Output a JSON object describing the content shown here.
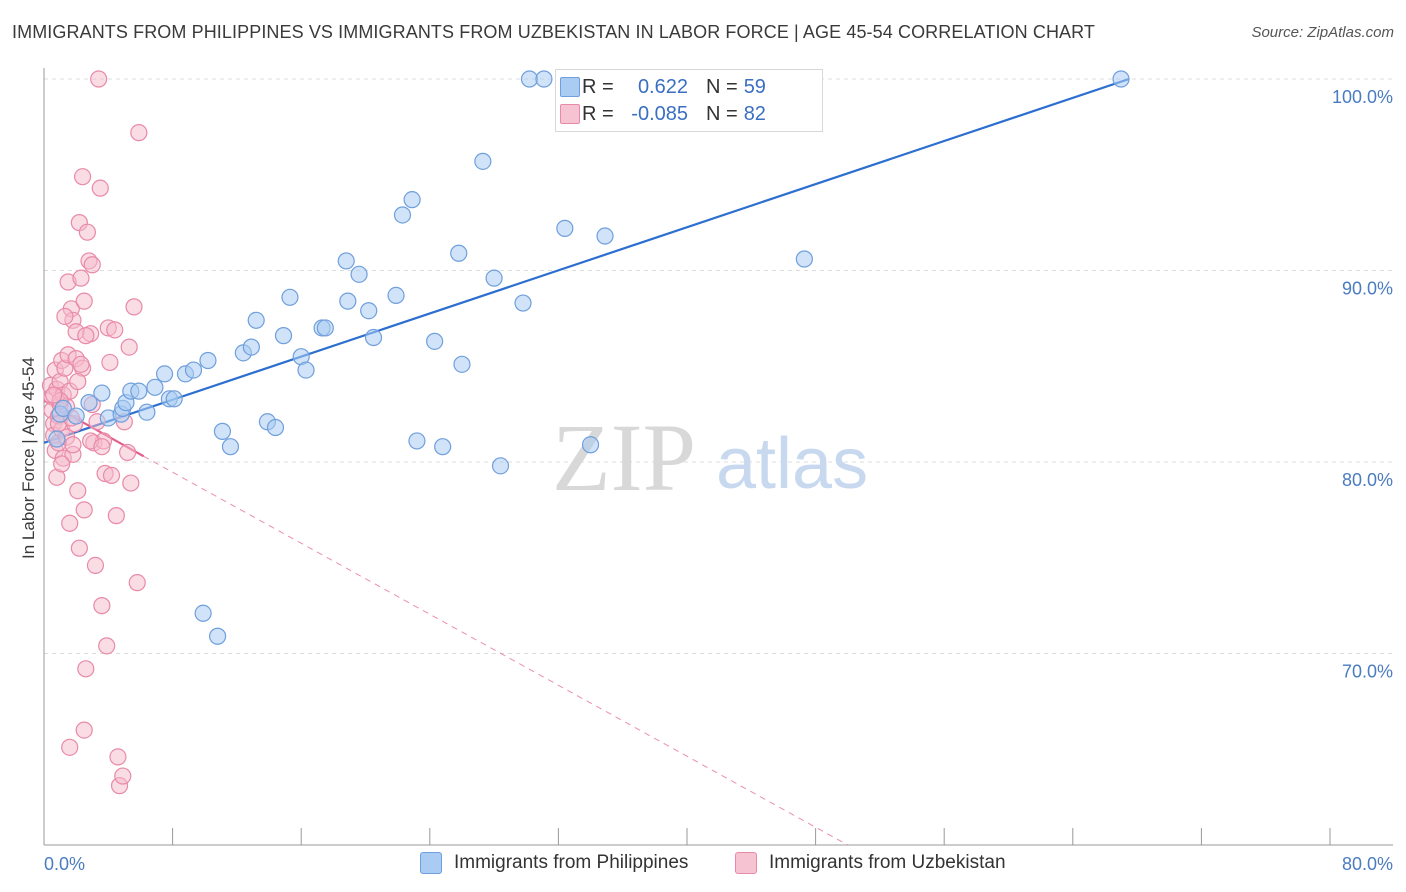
{
  "header": {
    "title": "IMMIGRANTS FROM PHILIPPINES VS IMMIGRANTS FROM UZBEKISTAN IN LABOR FORCE | AGE 45-54 CORRELATION CHART",
    "source": "Source: ZipAtlas.com"
  },
  "watermark": {
    "zip": "ZIP",
    "atlas": "atlas"
  },
  "legend": {
    "series1": {
      "r_label": "R =",
      "r_value": "0.622",
      "n_label": "N =",
      "n_value": "59"
    },
    "series2": {
      "r_label": "R =",
      "r_value": "-0.085",
      "n_label": "N =",
      "n_value": "82"
    }
  },
  "colors": {
    "blue_fill": "#aaccf2",
    "blue_stroke": "#6f9fdc",
    "blue_line": "#2c6fd0",
    "pink_fill": "#f6b9cc",
    "pink_stroke": "#e88aa8",
    "pink_line": "#e2608d",
    "tick_text": "#4a7cc0"
  },
  "chart_data": {
    "type": "scatter",
    "title": "IMMIGRANTS FROM PHILIPPINES VS IMMIGRANTS FROM UZBEKISTAN IN LABOR FORCE | AGE 45-54 CORRELATION CHART",
    "xlabel": "",
    "ylabel": "In Labor Force | Age 45-54",
    "xlim": [
      0,
      80
    ],
    "ylim": [
      60,
      100
    ],
    "x_tick_labels": {
      "min": "0.0%",
      "max": "80.0%"
    },
    "y_ticks": [
      {
        "value": 70,
        "label": "70.0%"
      },
      {
        "value": 80,
        "label": "80.0%"
      },
      {
        "value": 90,
        "label": "90.0%"
      },
      {
        "value": 100,
        "label": "100.0%"
      }
    ],
    "series": [
      {
        "name": "Immigrants from Philippines",
        "color": "#6f9fdc",
        "trend": {
          "x0": 0,
          "y0": 81.0,
          "x1": 67.5,
          "y1": 100,
          "dashed_to": null
        },
        "points": [
          [
            0.8,
            81.2
          ],
          [
            1.0,
            82.5
          ],
          [
            1.2,
            82.8
          ],
          [
            2.0,
            82.4
          ],
          [
            2.8,
            83.1
          ],
          [
            3.6,
            83.6
          ],
          [
            4.0,
            82.3
          ],
          [
            4.8,
            82.5
          ],
          [
            4.9,
            82.8
          ],
          [
            5.1,
            83.1
          ],
          [
            5.4,
            83.7
          ],
          [
            5.9,
            83.7
          ],
          [
            6.4,
            82.6
          ],
          [
            6.9,
            83.9
          ],
          [
            7.5,
            84.6
          ],
          [
            7.8,
            83.3
          ],
          [
            8.1,
            83.3
          ],
          [
            8.8,
            84.6
          ],
          [
            9.3,
            84.8
          ],
          [
            10.2,
            85.3
          ],
          [
            11.1,
            81.6
          ],
          [
            11.6,
            80.8
          ],
          [
            12.4,
            85.7
          ],
          [
            12.9,
            86.0
          ],
          [
            13.2,
            87.4
          ],
          [
            13.9,
            82.1
          ],
          [
            14.4,
            81.8
          ],
          [
            14.9,
            86.6
          ],
          [
            15.3,
            88.6
          ],
          [
            16.0,
            85.5
          ],
          [
            16.3,
            84.8
          ],
          [
            17.3,
            87.0
          ],
          [
            17.5,
            87.0
          ],
          [
            18.8,
            90.5
          ],
          [
            18.9,
            88.4
          ],
          [
            19.6,
            89.8
          ],
          [
            20.2,
            87.9
          ],
          [
            20.5,
            86.5
          ],
          [
            21.9,
            88.7
          ],
          [
            22.3,
            92.9
          ],
          [
            22.9,
            93.7
          ],
          [
            23.2,
            81.1
          ],
          [
            24.3,
            86.3
          ],
          [
            24.8,
            80.8
          ],
          [
            25.8,
            90.9
          ],
          [
            26.0,
            85.1
          ],
          [
            27.3,
            95.7
          ],
          [
            28.0,
            89.6
          ],
          [
            28.4,
            79.8
          ],
          [
            29.8,
            88.3
          ],
          [
            30.2,
            100.0
          ],
          [
            31.1,
            100.0
          ],
          [
            32.4,
            92.2
          ],
          [
            34.0,
            80.9
          ],
          [
            34.9,
            91.8
          ],
          [
            47.3,
            90.6
          ],
          [
            67.0,
            100.0
          ],
          [
            9.9,
            72.1
          ],
          [
            10.8,
            70.9
          ]
        ]
      },
      {
        "name": "Immigrants from Uzbekistan",
        "color": "#e88aa8",
        "trend": {
          "x0": 0,
          "y0": 83.2,
          "x1": 6.2,
          "y1": 80.3,
          "dashed_to": [
            50,
            60
          ]
        },
        "points": [
          [
            0.4,
            84.0
          ],
          [
            0.5,
            83.4
          ],
          [
            0.5,
            82.7
          ],
          [
            0.6,
            82.0
          ],
          [
            0.6,
            81.4
          ],
          [
            0.7,
            84.8
          ],
          [
            0.7,
            80.6
          ],
          [
            0.8,
            79.2
          ],
          [
            0.8,
            83.8
          ],
          [
            0.9,
            82.4
          ],
          [
            0.9,
            81.0
          ],
          [
            1.0,
            84.2
          ],
          [
            1.0,
            83.0
          ],
          [
            1.1,
            85.3
          ],
          [
            1.1,
            81.7
          ],
          [
            1.2,
            80.2
          ],
          [
            1.2,
            83.5
          ],
          [
            1.3,
            84.9
          ],
          [
            1.4,
            82.9
          ],
          [
            1.4,
            81.3
          ],
          [
            1.5,
            89.4
          ],
          [
            1.5,
            85.6
          ],
          [
            1.6,
            83.7
          ],
          [
            1.6,
            76.8
          ],
          [
            1.7,
            88.0
          ],
          [
            1.8,
            87.4
          ],
          [
            1.8,
            80.4
          ],
          [
            1.9,
            82.0
          ],
          [
            2.0,
            85.4
          ],
          [
            2.0,
            86.8
          ],
          [
            2.1,
            78.5
          ],
          [
            2.2,
            75.5
          ],
          [
            2.2,
            92.5
          ],
          [
            2.3,
            89.6
          ],
          [
            2.4,
            84.9
          ],
          [
            2.4,
            94.9
          ],
          [
            2.5,
            77.5
          ],
          [
            2.5,
            88.4
          ],
          [
            2.6,
            69.2
          ],
          [
            2.7,
            92.0
          ],
          [
            2.8,
            90.5
          ],
          [
            2.9,
            86.7
          ],
          [
            3.0,
            90.3
          ],
          [
            3.1,
            81.0
          ],
          [
            3.2,
            74.6
          ],
          [
            3.3,
            82.1
          ],
          [
            3.4,
            100.0
          ],
          [
            3.5,
            94.3
          ],
          [
            3.6,
            72.5
          ],
          [
            3.7,
            81.1
          ],
          [
            3.8,
            79.4
          ],
          [
            3.9,
            70.4
          ],
          [
            4.0,
            87.0
          ],
          [
            4.1,
            85.2
          ],
          [
            4.2,
            79.3
          ],
          [
            4.4,
            86.9
          ],
          [
            4.5,
            77.2
          ],
          [
            4.6,
            64.6
          ],
          [
            4.7,
            63.1
          ],
          [
            4.9,
            63.6
          ],
          [
            5.0,
            82.1
          ],
          [
            5.2,
            80.5
          ],
          [
            5.3,
            86.0
          ],
          [
            5.4,
            78.9
          ],
          [
            5.6,
            88.1
          ],
          [
            5.8,
            73.7
          ],
          [
            5.9,
            97.2
          ],
          [
            1.6,
            65.1
          ],
          [
            2.5,
            66.0
          ],
          [
            1.0,
            83.2
          ],
          [
            2.3,
            85.1
          ],
          [
            0.9,
            82.0
          ],
          [
            1.8,
            80.9
          ],
          [
            2.1,
            84.2
          ],
          [
            1.3,
            87.6
          ],
          [
            3.0,
            83.0
          ],
          [
            0.6,
            83.5
          ],
          [
            1.7,
            82.3
          ],
          [
            2.9,
            81.1
          ],
          [
            1.1,
            79.9
          ],
          [
            3.6,
            80.8
          ],
          [
            2.6,
            86.6
          ]
        ]
      }
    ],
    "legend_position": "top-center"
  },
  "bottom_legend": {
    "series1_label": "Immigrants from Philippines",
    "series2_label": "Immigrants from Uzbekistan"
  }
}
